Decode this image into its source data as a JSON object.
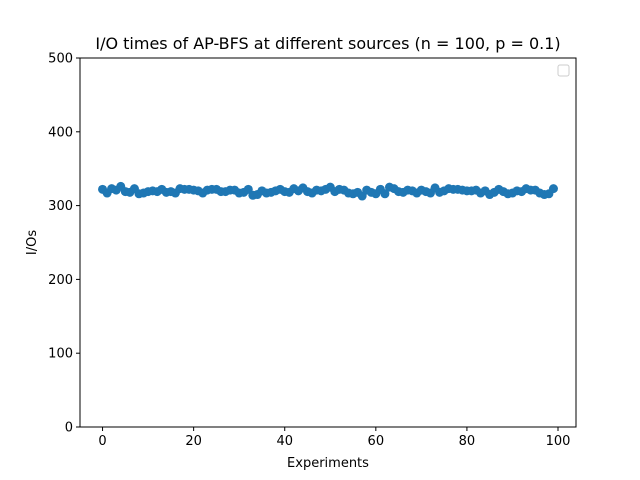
{
  "chart_data": {
    "type": "scatter",
    "title": "I/O times of AP-BFS at different sources (n = 100, p = 0.1)",
    "xlabel": "Experiments",
    "ylabel": "I/Os",
    "xlim": [
      -4.95,
      103.95
    ],
    "ylim": [
      0,
      500
    ],
    "xticks": [
      0,
      20,
      40,
      60,
      80,
      100
    ],
    "yticks": [
      0,
      100,
      200,
      300,
      400,
      500
    ],
    "grid": false,
    "legend": "top-right, empty",
    "series": [
      {
        "color": "#1f77b4",
        "x": [
          0,
          1,
          2,
          3,
          4,
          5,
          6,
          7,
          8,
          9,
          10,
          11,
          12,
          13,
          14,
          15,
          16,
          17,
          18,
          19,
          20,
          21,
          22,
          23,
          24,
          25,
          26,
          27,
          28,
          29,
          30,
          31,
          32,
          33,
          34,
          35,
          36,
          37,
          38,
          39,
          40,
          41,
          42,
          43,
          44,
          45,
          46,
          47,
          48,
          49,
          50,
          51,
          52,
          53,
          54,
          55,
          56,
          57,
          58,
          59,
          60,
          61,
          62,
          63,
          64,
          65,
          66,
          67,
          68,
          69,
          70,
          71,
          72,
          73,
          74,
          75,
          76,
          77,
          78,
          79,
          80,
          81,
          82,
          83,
          84,
          85,
          86,
          87,
          88,
          89,
          90,
          91,
          92,
          93,
          94,
          95,
          96,
          97,
          98,
          99
        ],
        "y": [
          322,
          317,
          323,
          321,
          326,
          319,
          318,
          323,
          316,
          317,
          319,
          320,
          319,
          322,
          318,
          319,
          317,
          323,
          322,
          322,
          321,
          320,
          317,
          321,
          322,
          322,
          319,
          319,
          321,
          321,
          317,
          318,
          322,
          314,
          315,
          320,
          317,
          318,
          320,
          322,
          319,
          318,
          323,
          320,
          324,
          319,
          317,
          321,
          320,
          322,
          325,
          319,
          322,
          321,
          317,
          316,
          318,
          313,
          321,
          318,
          316,
          322,
          316,
          325,
          323,
          319,
          318,
          321,
          320,
          317,
          321,
          319,
          317,
          324,
          318,
          320,
          323,
          322,
          322,
          321,
          320,
          320,
          321,
          317,
          320,
          315,
          318,
          322,
          319,
          316,
          317,
          320,
          319,
          323,
          321,
          321,
          317,
          315,
          316,
          323
        ]
      }
    ]
  }
}
